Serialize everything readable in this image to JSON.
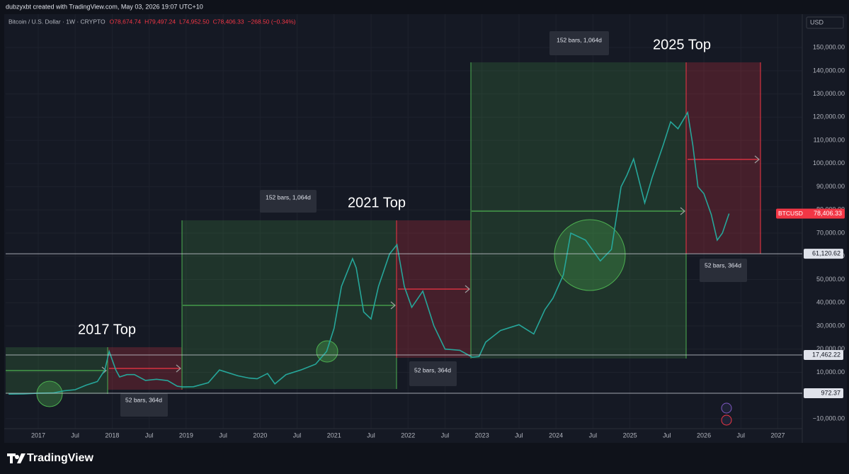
{
  "chart_data": {
    "type": "line",
    "header": "dubzyxbt created with TradingView.com, May 03, 2026 19:07 UTC+10",
    "symbol": "Bitcoin / U.S. Dollar · 1W · CRYPTO",
    "ohlc": [
      "O78,674.74",
      "H79,497.24",
      "L74,952.50",
      "C78,406.33",
      "−268.50 (−0.34%)"
    ],
    "currency": "USD",
    "footer": "TradingView",
    "x": [
      2016.6,
      2016.8,
      2017.0,
      2017.2,
      2017.35,
      2017.5,
      2017.65,
      2017.8,
      2017.9,
      2017.96,
      2018.05,
      2018.1,
      2018.2,
      2018.3,
      2018.45,
      2018.6,
      2018.75,
      2018.88,
      2018.96,
      2019.1,
      2019.3,
      2019.45,
      2019.5,
      2019.7,
      2019.85,
      2019.96,
      2020.1,
      2020.2,
      2020.35,
      2020.55,
      2020.75,
      2020.9,
      2021.0,
      2021.1,
      2021.25,
      2021.3,
      2021.4,
      2021.5,
      2021.6,
      2021.75,
      2021.85,
      2021.95,
      2022.05,
      2022.2,
      2022.35,
      2022.5,
      2022.7,
      2022.87,
      2022.96,
      2023.05,
      2023.25,
      2023.5,
      2023.7,
      2023.85,
      2023.96,
      2024.1,
      2024.2,
      2024.4,
      2024.6,
      2024.75,
      2024.88,
      2024.96,
      2025.05,
      2025.2,
      2025.3,
      2025.45,
      2025.55,
      2025.65,
      2025.78,
      2025.85,
      2025.92,
      2026.0,
      2026.1,
      2026.18,
      2026.25,
      2026.34
    ],
    "series": [
      {
        "name": "BTCUSD",
        "color": "#26a69a",
        "values": [
          600,
          700,
          1000,
          1100,
          2000,
          2500,
          4500,
          6000,
          11000,
          19000,
          11000,
          8000,
          9000,
          9000,
          6500,
          7000,
          6400,
          4000,
          3700,
          3800,
          5500,
          11000,
          10500,
          8500,
          7500,
          7200,
          9500,
          5000,
          9000,
          11000,
          13500,
          19000,
          29000,
          47000,
          59000,
          55000,
          36000,
          33000,
          47000,
          61000,
          65000,
          47000,
          38000,
          45000,
          30000,
          20000,
          19500,
          16500,
          16800,
          23000,
          28000,
          30500,
          26500,
          37000,
          42000,
          52000,
          70000,
          67000,
          58000,
          63000,
          90000,
          95000,
          102000,
          83000,
          94000,
          108000,
          118000,
          115000,
          122000,
          108000,
          90000,
          87000,
          78000,
          67000,
          70000,
          78406.33
        ]
      }
    ],
    "last_price": {
      "value": 78406.33,
      "label": "78,406.33"
    },
    "levels": {
      "values": [
        61120.62,
        17462.22,
        972.37
      ],
      "value_labels": [
        "61,120.62",
        "17,462.22",
        "972.37"
      ]
    },
    "xlim": [
      2016.56,
      2027.33
    ],
    "ylim": [
      -14300,
      158300
    ],
    "xticks": [
      2017,
      {
        "value": 2017.5,
        "label": "Jul"
      },
      2018,
      {
        "value": 2018.5,
        "label": "Jul"
      },
      2019,
      {
        "value": 2019.5,
        "label": "Jul"
      },
      2020,
      {
        "value": 2020.5,
        "label": "Jul"
      },
      2021,
      {
        "value": 2021.5,
        "label": "Jul"
      },
      2022,
      {
        "value": 2022.5,
        "label": "Jul"
      },
      2023,
      {
        "value": 2023.5,
        "label": "Jul"
      },
      2024,
      {
        "value": 2024.5,
        "label": "Jul"
      },
      2025,
      {
        "value": 2025.5,
        "label": "Jul"
      },
      2026,
      {
        "value": 2026.5,
        "label": "Jul"
      },
      2027
    ],
    "yticks": [
      {
        "value": -10000,
        "label": "−10,000.00"
      },
      {
        "value": 10000,
        "label": "10,000.00"
      },
      {
        "value": 20000,
        "label": "20,000.00"
      },
      {
        "value": 30000,
        "label": "30,000.00"
      },
      {
        "value": 40000,
        "label": "40,000.00"
      },
      {
        "value": 50000,
        "label": "50,000.00"
      },
      {
        "value": 60000,
        "label": "60,000.00"
      },
      {
        "value": 70000,
        "label": "70,000.00"
      },
      {
        "value": 80000,
        "label": "80,000.00"
      },
      {
        "value": 90000,
        "label": "90,000.00"
      },
      {
        "value": 100000,
        "label": "100,000.00"
      },
      {
        "value": 110000,
        "label": "110,000.00"
      },
      {
        "value": 120000,
        "label": "120,000.00"
      },
      {
        "value": 130000,
        "label": "130,000.00"
      },
      {
        "value": 140000,
        "label": "140,000.00"
      },
      {
        "value": 150000,
        "label": "150,000.00"
      }
    ],
    "grid": true,
    "tops": [
      "2017 Top",
      "2021 Top",
      "2025 Top"
    ],
    "ranges": [
      "52 bars, 364d",
      "152 bars, 1,064d",
      "52 bars, 364d",
      "152 bars, 1,064d",
      "52 bars, 364d"
    ]
  }
}
